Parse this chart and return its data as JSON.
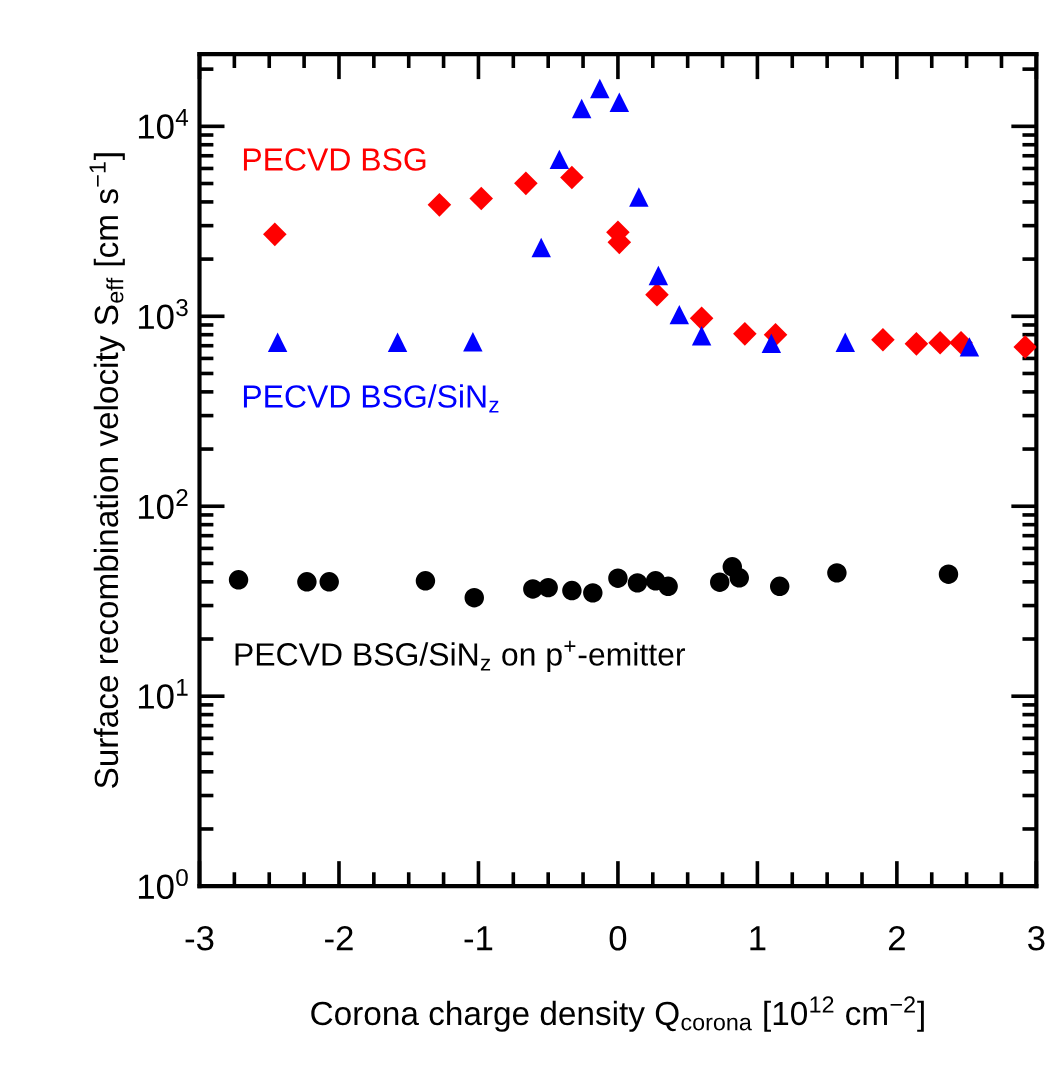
{
  "chart_data": {
    "type": "scatter",
    "xlabel": "Corona charge density Q$_{corona}$ [10$^{12}$ cm$^{−2}$]",
    "ylabel": "Surface recombination velocity S$_{eff}$ [cm s$^{−1}$]",
    "log": "y",
    "grid": false,
    "legend": false,
    "xlim": [
      -3,
      3
    ],
    "xticks": [
      -3,
      -2,
      -1,
      0,
      1,
      2,
      3
    ],
    "ylim": [
      1,
      24000
    ],
    "yticks": [
      {
        "value": 1,
        "label": "10$^{0}$"
      },
      {
        "value": 10,
        "label": "10$^{1}$"
      },
      {
        "value": 100,
        "label": "10$^{2}$"
      },
      {
        "value": 1000,
        "label": "10$^{3}$"
      },
      {
        "value": 10000,
        "label": "10$^{4}$"
      }
    ],
    "series": [
      {
        "name": "PECVD BSG",
        "color": "#ff0000",
        "marker": "diamond",
        "x": [
          -2.46,
          -1.28,
          -0.98,
          -0.66,
          -0.33,
          0.0,
          0.01,
          0.28,
          0.6,
          0.91,
          1.13,
          1.9,
          2.14,
          2.31,
          2.46,
          2.92
        ],
        "values": [
          2700,
          3860,
          4170,
          5010,
          5380,
          2770,
          2450,
          1300,
          975,
          808,
          800,
          752,
          716,
          725,
          725,
          689
        ]
      },
      {
        "name": "PECVD BSG/SiN$_{z}$",
        "color": "#0000ff",
        "marker": "triangle",
        "x": [
          -2.44,
          -1.58,
          -1.04,
          -0.55,
          -0.42,
          -0.26,
          -0.13,
          0.01,
          0.15,
          0.29,
          0.44,
          0.6,
          1.1,
          1.63,
          2.52
        ],
        "values": [
          730,
          730,
          735,
          2300,
          6700,
          12400,
          15800,
          13400,
          4250,
          1640,
          1020,
          790,
          720,
          730,
          690
        ]
      },
      {
        "name": "PECVD BSG/SiN$_{z}$ on p$^{+}$-emitter",
        "color": "#000000",
        "marker": "circle",
        "x": [
          -2.72,
          -2.23,
          -2.07,
          -1.38,
          -1.03,
          -0.61,
          -0.5,
          -0.33,
          -0.18,
          0.0,
          0.14,
          0.27,
          0.36,
          0.73,
          0.82,
          0.87,
          1.16,
          1.57,
          2.37
        ],
        "values": [
          41,
          40,
          40,
          40.5,
          33,
          36.7,
          37.3,
          36,
          35,
          41.8,
          39.5,
          40.5,
          37.9,
          39.8,
          48,
          42,
          37.9,
          44.6,
          43.9
        ]
      }
    ]
  }
}
